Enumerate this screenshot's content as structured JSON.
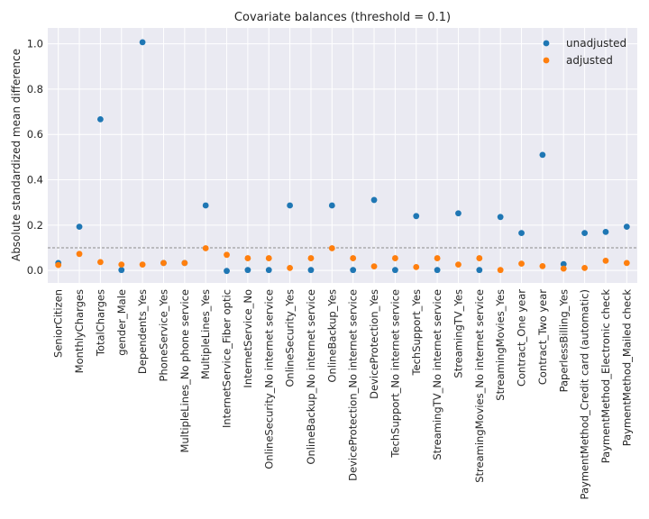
{
  "chart_data": {
    "type": "scatter",
    "title": "Covariate balances (threshold = 0.1)",
    "xlabel": "",
    "ylabel": "Absolute standardized mean difference",
    "ylim": [
      -0.055,
      1.07
    ],
    "yticks": [
      "0.0",
      "0.2",
      "0.4",
      "0.6",
      "0.8",
      "1.0"
    ],
    "threshold": 0.1,
    "grid": true,
    "legend_position": "top-right",
    "categories": [
      "SeniorCitizen",
      "MonthlyCharges",
      "TotalCharges",
      "gender_Male",
      "Dependents_Yes",
      "PhoneService_Yes",
      "MultipleLines_No phone service",
      "MultipleLines_Yes",
      "InternetService_Fiber optic",
      "InternetService_No",
      "OnlineSecurity_No internet service",
      "OnlineSecurity_Yes",
      "OnlineBackup_No internet service",
      "OnlineBackup_Yes",
      "DeviceProtection_No internet service",
      "DeviceProtection_Yes",
      "TechSupport_No internet service",
      "TechSupport_Yes",
      "StreamingTV_No internet service",
      "StreamingTV_Yes",
      "StreamingMovies_No internet service",
      "StreamingMovies_Yes",
      "Contract_One year",
      "Contract_Two year",
      "PaperlessBilling_Yes",
      "PaymentMethod_Credit card (automatic)",
      "PaymentMethod_Electronic check",
      "PaymentMethod_Mailed check"
    ],
    "series": [
      {
        "name": "unadjusted",
        "color": "#1f77b4",
        "values": [
          0.033,
          0.193,
          0.667,
          0.002,
          1.007,
          0.033,
          0.033,
          0.287,
          -0.002,
          0.002,
          0.002,
          0.287,
          0.002,
          0.287,
          0.002,
          0.311,
          0.002,
          0.24,
          0.002,
          0.252,
          0.002,
          0.236,
          0.165,
          0.51,
          0.028,
          0.165,
          0.17,
          0.193
        ]
      },
      {
        "name": "adjusted",
        "color": "#ff7f0e",
        "values": [
          0.024,
          0.073,
          0.037,
          0.026,
          0.026,
          0.033,
          0.033,
          0.098,
          0.069,
          0.054,
          0.054,
          0.011,
          0.054,
          0.098,
          0.054,
          0.018,
          0.054,
          0.015,
          0.054,
          0.026,
          0.054,
          0.002,
          0.03,
          0.019,
          0.008,
          0.011,
          0.043,
          0.033
        ]
      }
    ]
  }
}
